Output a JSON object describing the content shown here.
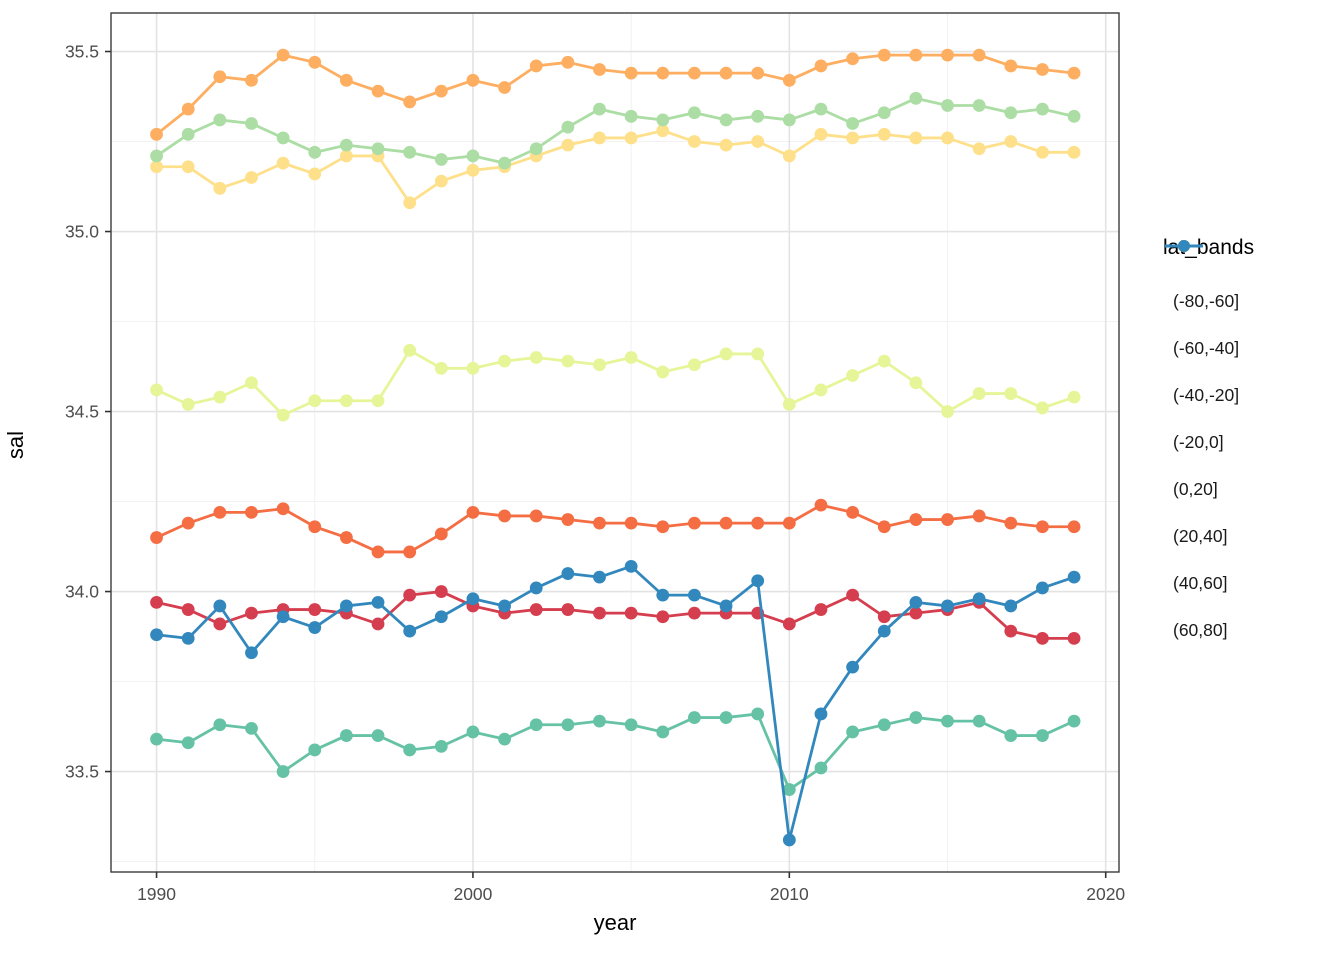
{
  "legend": {
    "title": "lat_bands",
    "items": [
      {
        "label": "(-80,-60]",
        "color": "#d53e4f"
      },
      {
        "label": "(-60,-40]",
        "color": "#f46d43"
      },
      {
        "label": "(-40,-20]",
        "color": "#fdae61"
      },
      {
        "label": "(-20,0]",
        "color": "#fee08b"
      },
      {
        "label": "(0,20]",
        "color": "#e6f598"
      },
      {
        "label": "(20,40]",
        "color": "#abdda4"
      },
      {
        "label": "(40,60]",
        "color": "#66c2a5"
      },
      {
        "label": "(60,80]",
        "color": "#3288bd"
      }
    ]
  },
  "chart_data": {
    "type": "line",
    "title": "",
    "xlabel": "year",
    "ylabel": "sal",
    "legend_position": "right",
    "grid": true,
    "xlim": [
      1988.56,
      2020.42
    ],
    "ylim": [
      33.221,
      35.607
    ],
    "x_ticks": [
      1990,
      2000,
      2010,
      2020
    ],
    "x_minor_ticks": [
      1995,
      2005,
      2015
    ],
    "y_ticks": [
      33.5,
      34.0,
      34.5,
      35.0,
      35.5
    ],
    "y_minor_ticks": [
      33.25,
      33.75,
      34.25,
      34.75,
      35.25
    ],
    "x": [
      1990,
      1991,
      1992,
      1993,
      1994,
      1995,
      1996,
      1997,
      1998,
      1999,
      2000,
      2001,
      2002,
      2003,
      2004,
      2005,
      2006,
      2007,
      2008,
      2009,
      2010,
      2011,
      2012,
      2013,
      2014,
      2015,
      2016,
      2017,
      2018,
      2019
    ],
    "series": [
      {
        "name": "(-80,-60]",
        "color": "#d53e4f",
        "values": [
          33.97,
          33.95,
          33.91,
          33.94,
          33.95,
          33.95,
          33.94,
          33.91,
          33.99,
          34.0,
          33.96,
          33.94,
          33.95,
          33.95,
          33.94,
          33.94,
          33.93,
          33.94,
          33.94,
          33.94,
          33.91,
          33.95,
          33.99,
          33.93,
          33.94,
          33.95,
          33.97,
          33.89,
          33.87,
          33.87
        ]
      },
      {
        "name": "(-60,-40]",
        "color": "#f46d43",
        "values": [
          34.15,
          34.19,
          34.22,
          34.22,
          34.23,
          34.18,
          34.15,
          34.11,
          34.11,
          34.16,
          34.22,
          34.21,
          34.21,
          34.2,
          34.19,
          34.19,
          34.18,
          34.19,
          34.19,
          34.19,
          34.19,
          34.24,
          34.22,
          34.18,
          34.2,
          34.2,
          34.21,
          34.19,
          34.18,
          34.18
        ]
      },
      {
        "name": "(-40,-20]",
        "color": "#fdae61",
        "values": [
          35.27,
          35.34,
          35.43,
          35.42,
          35.49,
          35.47,
          35.42,
          35.39,
          35.36,
          35.39,
          35.42,
          35.4,
          35.46,
          35.47,
          35.45,
          35.44,
          35.44,
          35.44,
          35.44,
          35.44,
          35.42,
          35.46,
          35.48,
          35.49,
          35.49,
          35.49,
          35.49,
          35.46,
          35.45,
          35.44
        ]
      },
      {
        "name": "(-20,0]",
        "color": "#fee08b",
        "values": [
          35.18,
          35.18,
          35.12,
          35.15,
          35.19,
          35.16,
          35.21,
          35.21,
          35.08,
          35.14,
          35.17,
          35.18,
          35.21,
          35.24,
          35.26,
          35.26,
          35.28,
          35.25,
          35.24,
          35.25,
          35.21,
          35.27,
          35.26,
          35.27,
          35.26,
          35.26,
          35.23,
          35.25,
          35.22,
          35.22
        ]
      },
      {
        "name": "(0,20]",
        "color": "#e6f598",
        "values": [
          34.56,
          34.52,
          34.54,
          34.58,
          34.49,
          34.53,
          34.53,
          34.53,
          34.67,
          34.62,
          34.62,
          34.64,
          34.65,
          34.64,
          34.63,
          34.65,
          34.61,
          34.63,
          34.66,
          34.66,
          34.52,
          34.56,
          34.6,
          34.64,
          34.58,
          34.5,
          34.55,
          34.55,
          34.51,
          34.54
        ]
      },
      {
        "name": "(20,40]",
        "color": "#abdda4",
        "values": [
          35.21,
          35.27,
          35.31,
          35.3,
          35.26,
          35.22,
          35.24,
          35.23,
          35.22,
          35.2,
          35.21,
          35.19,
          35.23,
          35.29,
          35.34,
          35.32,
          35.31,
          35.33,
          35.31,
          35.32,
          35.31,
          35.34,
          35.3,
          35.33,
          35.37,
          35.35,
          35.35,
          35.33,
          35.34,
          35.32
        ]
      },
      {
        "name": "(40,60]",
        "color": "#66c2a5",
        "values": [
          33.59,
          33.58,
          33.63,
          33.62,
          33.5,
          33.56,
          33.6,
          33.6,
          33.56,
          33.57,
          33.61,
          33.59,
          33.63,
          33.63,
          33.64,
          33.63,
          33.61,
          33.65,
          33.65,
          33.66,
          33.45,
          33.51,
          33.61,
          33.63,
          33.65,
          33.64,
          33.64,
          33.6,
          33.6,
          33.64
        ]
      },
      {
        "name": "(60,80]",
        "color": "#3288bd",
        "values": [
          33.88,
          33.87,
          33.96,
          33.83,
          33.93,
          33.9,
          33.96,
          33.97,
          33.89,
          33.93,
          33.98,
          33.96,
          34.01,
          34.05,
          34.04,
          34.07,
          33.99,
          33.99,
          33.96,
          34.03,
          33.31,
          33.66,
          33.79,
          33.89,
          33.97,
          33.96,
          33.98,
          33.96,
          34.01,
          34.04
        ]
      }
    ]
  }
}
